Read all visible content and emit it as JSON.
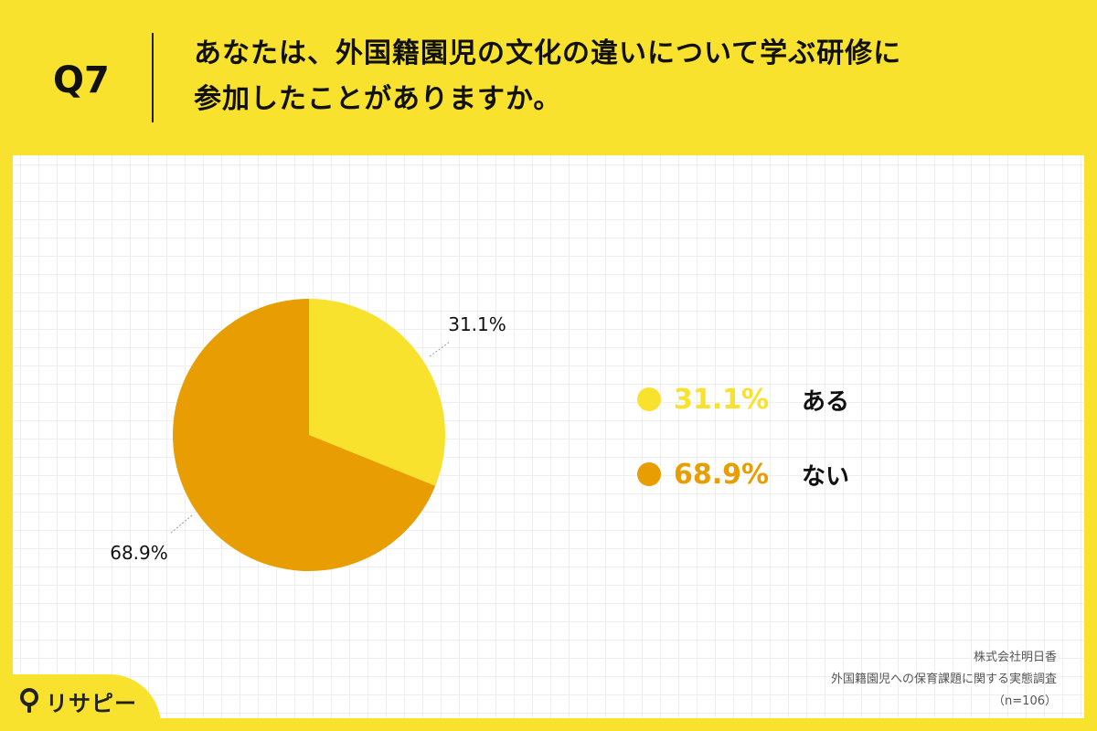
{
  "header": {
    "q_label": "Q7",
    "question_line1": "あなたは、外国籍園児の文化の違いについて学ぶ研修に",
    "question_line2": "参加したことがありますか。"
  },
  "chart_data": {
    "type": "pie",
    "slices": [
      {
        "label": "ある",
        "value": 31.1,
        "display": "31.1%",
        "color": "#f9e22e"
      },
      {
        "label": "ない",
        "value": 68.9,
        "display": "68.9%",
        "color": "#e89e03"
      }
    ]
  },
  "source": {
    "company": "株式会社明日香",
    "survey": "外国籍園児への保育課題に関する実態調査",
    "sample": "（n=106）"
  },
  "logo": {
    "text": "リサピー",
    "icon": "pin-icon"
  }
}
